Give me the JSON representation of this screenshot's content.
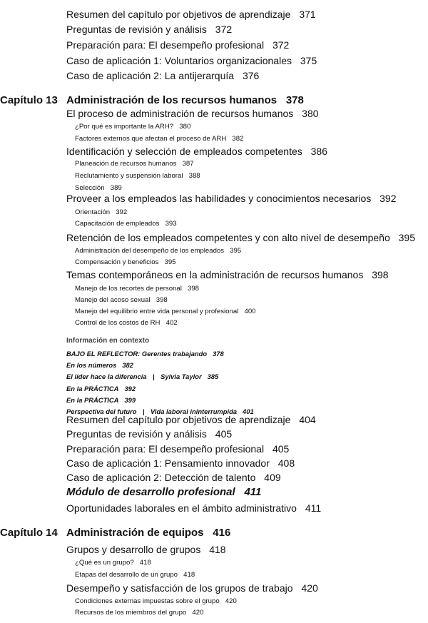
{
  "toc": [
    {
      "kind": "main",
      "text": "Resumen del capítulo por objetivos de aprendizaje",
      "page": "371"
    },
    {
      "kind": "main",
      "text": "Preguntas de revisión y análisis",
      "page": "372"
    },
    {
      "kind": "main",
      "text": "Preparación para: El desempeño profesional",
      "page": "372"
    },
    {
      "kind": "main",
      "text": "Caso de aplicación 1: Voluntarios organizacionales",
      "page": "375"
    },
    {
      "kind": "main",
      "text": "Caso de aplicación 2: La antijerarquía",
      "page": "376"
    },
    {
      "kind": "chap",
      "label": "Capítulo 13",
      "text": "Administración de los recursos humanos",
      "page": "378"
    },
    {
      "kind": "main",
      "text": "El proceso de administración de recursos humanos",
      "page": "380"
    },
    {
      "kind": "sub",
      "text": "¿Por qué es importante la ARH?",
      "page": "380"
    },
    {
      "kind": "sub",
      "text": "Factores externos que afectan el proceso de ARH",
      "page": "382"
    },
    {
      "kind": "main",
      "text": "Identificación y selección de empleados competentes",
      "page": "386"
    },
    {
      "kind": "sub",
      "text": "Planeación de recursos humanos",
      "page": "387"
    },
    {
      "kind": "sub",
      "text": "Reclutamiento y suspensión laboral",
      "page": "388"
    },
    {
      "kind": "sub",
      "text": "Selección",
      "page": "389"
    },
    {
      "kind": "main",
      "text": "Proveer a los empleados las habilidades y conocimientos necesarios",
      "page": "392"
    },
    {
      "kind": "sub",
      "text": "Orientación",
      "page": "392"
    },
    {
      "kind": "sub",
      "text": "Capacitación de empleados",
      "page": "393"
    },
    {
      "kind": "main",
      "text": "Retención de los empleados competentes y con alto nivel de desempeño",
      "page": "395"
    },
    {
      "kind": "sub",
      "text": "Administración del desempeño de los empleados",
      "page": "395"
    },
    {
      "kind": "sub",
      "text": "Compensación y beneficios",
      "page": "395"
    },
    {
      "kind": "main",
      "text": "Temas contemporáneos en la administración de recursos humanos",
      "page": "398"
    },
    {
      "kind": "sub",
      "text": "Manejo de los recortes de personal",
      "page": "398"
    },
    {
      "kind": "sub",
      "text": "Manejo del acoso sexual",
      "page": "398"
    },
    {
      "kind": "sub",
      "text": "Manejo del equilibrio entre vida personal y profesional",
      "page": "400"
    },
    {
      "kind": "sub",
      "text": "Control de los costos de RH",
      "page": "402"
    },
    {
      "kind": "ctxh",
      "text": "Información en contexto"
    },
    {
      "kind": "ctx",
      "text": "BAJO EL REFLECTOR: Gerentes trabajando",
      "page": "378"
    },
    {
      "kind": "ctx",
      "text": "En los números",
      "page": "382"
    },
    {
      "kind": "ctx",
      "text": "El líder hace la diferencia",
      "sep": "|",
      "text2": "Sylvia Taylor",
      "page": "385"
    },
    {
      "kind": "ctx",
      "text": "En la PRÁCTICA",
      "page": "392"
    },
    {
      "kind": "ctx",
      "text": "En la PRÁCTICA",
      "page": "399"
    },
    {
      "kind": "ctx",
      "text": "Perspectiva del futuro",
      "sep": "|",
      "text2": "Vida laboral ininterrumpida",
      "page": "401"
    },
    {
      "kind": "main",
      "text": "Resumen del capítulo por objetivos de aprendizaje",
      "page": "404"
    },
    {
      "kind": "main",
      "text": "Preguntas de revisión y análisis",
      "page": "405"
    },
    {
      "kind": "main",
      "text": "Preparación para: El desempeño profesional",
      "page": "405"
    },
    {
      "kind": "main",
      "text": "Caso de aplicación 1: Pensamiento innovador",
      "page": "408"
    },
    {
      "kind": "main",
      "text": "Caso de aplicación 2: Detección de talento",
      "page": "409"
    },
    {
      "kind": "mod",
      "text": "Módulo de desarrollo profesional",
      "page": "411"
    },
    {
      "kind": "main",
      "text": "Oportunidades laborales en el ámbito administrativo",
      "page": "411"
    },
    {
      "kind": "chap",
      "label": "Capítulo 14",
      "text": "Administración de equipos",
      "page": "416"
    },
    {
      "kind": "main",
      "text": "Grupos y desarrollo de grupos",
      "page": "418"
    },
    {
      "kind": "sub",
      "text": "¿Qué es un grupo?",
      "page": "418"
    },
    {
      "kind": "sub",
      "text": "Etapas del desarrollo de un grupo",
      "page": "418"
    },
    {
      "kind": "main",
      "text": "Desempeño y satisfacción de los grupos de trabajo",
      "page": "420"
    },
    {
      "kind": "sub",
      "text": "Condiciones externas impuestas sobre el grupo",
      "page": "420"
    },
    {
      "kind": "sub",
      "text": "Recursos de los miembros del grupo",
      "page": "420"
    }
  ]
}
